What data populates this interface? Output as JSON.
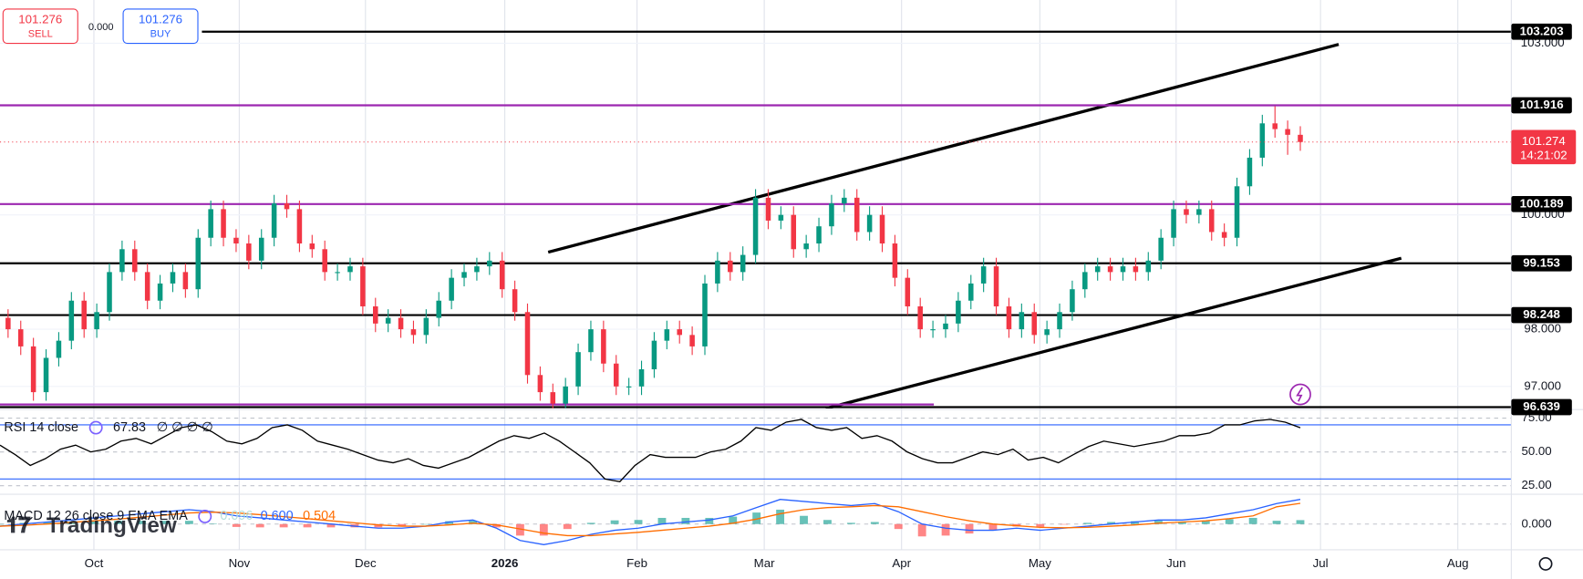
{
  "toolbar": {
    "sell_price": "101.276",
    "sell_label": "SELL",
    "buy_price": "101.276",
    "buy_label": "BUY",
    "spread": "0.000"
  },
  "watermark": "TradingView",
  "chart_data": [
    {
      "type": "candlestick",
      "ylim": [
        96.614,
        103.757
      ],
      "yticks": [
        {
          "value": 103,
          "label": "103.000"
        },
        {
          "value": 100,
          "label": "100.000"
        },
        {
          "value": 98,
          "label": "98.000"
        },
        {
          "value": 97,
          "label": "97.000"
        }
      ],
      "months": [
        "Oct",
        "Nov",
        "Dec",
        "2026",
        "Feb",
        "Mar",
        "Apr",
        "May",
        "Jun",
        "Jul",
        "Aug"
      ],
      "up_color": "#089981",
      "down_color": "#f23645",
      "price_lines": [
        {
          "value": 103.203,
          "color": "#000000"
        },
        {
          "value": 101.916,
          "color": "#9c27b0"
        },
        {
          "value": 100.189,
          "color": "#9c27b0"
        },
        {
          "value": 99.153,
          "color": "#000000"
        },
        {
          "value": 98.248,
          "color": "#000000"
        },
        {
          "value": 96.639,
          "color": "#000000"
        }
      ],
      "last_price": {
        "value": 101.274,
        "countdown": "14:21:02",
        "color": "#f23645"
      },
      "ohlc": [
        [
          98.2,
          98.35,
          97.85,
          98.0
        ],
        [
          98.0,
          98.15,
          97.55,
          97.7
        ],
        [
          97.7,
          97.85,
          96.75,
          96.9
        ],
        [
          96.9,
          97.65,
          96.75,
          97.5
        ],
        [
          97.5,
          97.95,
          97.35,
          97.8
        ],
        [
          97.8,
          98.65,
          97.65,
          98.5
        ],
        [
          98.5,
          98.65,
          97.85,
          98.0
        ],
        [
          98.0,
          98.45,
          97.85,
          98.3
        ],
        [
          98.3,
          99.15,
          98.15,
          99.0
        ],
        [
          99.0,
          99.55,
          98.85,
          99.4
        ],
        [
          99.4,
          99.55,
          98.85,
          99.0
        ],
        [
          99.0,
          99.15,
          98.35,
          98.5
        ],
        [
          98.5,
          98.95,
          98.35,
          98.8
        ],
        [
          98.8,
          99.15,
          98.65,
          99.0
        ],
        [
          99.0,
          99.15,
          98.55,
          98.7
        ],
        [
          98.7,
          99.75,
          98.55,
          99.6
        ],
        [
          99.6,
          100.25,
          99.45,
          100.1
        ],
        [
          100.1,
          100.25,
          99.45,
          99.6
        ],
        [
          99.6,
          99.75,
          99.35,
          99.5
        ],
        [
          99.5,
          99.65,
          99.05,
          99.2
        ],
        [
          99.2,
          99.75,
          99.05,
          99.6
        ],
        [
          99.6,
          100.35,
          99.45,
          100.2
        ],
        [
          100.2,
          100.35,
          99.95,
          100.1
        ],
        [
          100.1,
          100.25,
          99.35,
          99.5
        ],
        [
          99.5,
          99.65,
          99.25,
          99.4
        ],
        [
          99.4,
          99.55,
          98.85,
          99.0
        ],
        [
          99.0,
          99.15,
          98.85,
          99.0
        ],
        [
          99.0,
          99.25,
          98.85,
          99.1
        ],
        [
          99.1,
          99.25,
          98.25,
          98.4
        ],
        [
          98.4,
          98.55,
          97.95,
          98.1
        ],
        [
          98.1,
          98.35,
          97.95,
          98.2
        ],
        [
          98.2,
          98.35,
          97.85,
          98.0
        ],
        [
          98.0,
          98.15,
          97.75,
          97.9
        ],
        [
          97.9,
          98.35,
          97.75,
          98.2
        ],
        [
          98.2,
          98.65,
          98.05,
          98.5
        ],
        [
          98.5,
          99.05,
          98.35,
          98.9
        ],
        [
          98.9,
          99.15,
          98.75,
          99.0
        ],
        [
          99.0,
          99.25,
          98.85,
          99.1
        ],
        [
          99.1,
          99.35,
          98.95,
          99.2
        ],
        [
          99.2,
          99.35,
          98.55,
          98.7
        ],
        [
          98.7,
          98.85,
          98.15,
          98.3
        ],
        [
          98.3,
          98.45,
          97.05,
          97.2
        ],
        [
          97.2,
          97.35,
          96.75,
          96.9
        ],
        [
          96.9,
          97.05,
          96.62,
          96.7
        ],
        [
          96.7,
          97.15,
          96.62,
          97.0
        ],
        [
          97.0,
          97.75,
          96.85,
          97.6
        ],
        [
          97.6,
          98.15,
          97.45,
          98.0
        ],
        [
          98.0,
          98.15,
          97.25,
          97.4
        ],
        [
          97.4,
          97.55,
          96.85,
          97.0
        ],
        [
          97.0,
          97.15,
          96.85,
          97.0
        ],
        [
          97.0,
          97.45,
          96.85,
          97.3
        ],
        [
          97.3,
          97.95,
          97.15,
          97.8
        ],
        [
          97.8,
          98.15,
          97.65,
          98.0
        ],
        [
          98.0,
          98.15,
          97.75,
          97.9
        ],
        [
          97.9,
          98.05,
          97.55,
          97.7
        ],
        [
          97.7,
          98.95,
          97.55,
          98.8
        ],
        [
          98.8,
          99.35,
          98.65,
          99.2
        ],
        [
          99.2,
          99.35,
          98.85,
          99.0
        ],
        [
          99.0,
          99.45,
          98.85,
          99.3
        ],
        [
          99.3,
          100.45,
          99.15,
          100.3
        ],
        [
          100.3,
          100.45,
          99.75,
          99.9
        ],
        [
          99.9,
          100.15,
          99.75,
          100.0
        ],
        [
          100.0,
          100.15,
          99.25,
          99.4
        ],
        [
          99.4,
          99.65,
          99.25,
          99.5
        ],
        [
          99.5,
          99.95,
          99.35,
          99.8
        ],
        [
          99.8,
          100.35,
          99.65,
          100.2
        ],
        [
          100.2,
          100.45,
          100.05,
          100.3
        ],
        [
          100.3,
          100.45,
          99.55,
          99.7
        ],
        [
          99.7,
          100.15,
          99.55,
          100.0
        ],
        [
          100.0,
          100.15,
          99.35,
          99.5
        ],
        [
          99.5,
          99.65,
          98.75,
          98.9
        ],
        [
          98.9,
          99.05,
          98.25,
          98.4
        ],
        [
          98.4,
          98.55,
          97.85,
          98.0
        ],
        [
          98.0,
          98.15,
          97.85,
          98.0
        ],
        [
          98.0,
          98.25,
          97.85,
          98.1
        ],
        [
          98.1,
          98.65,
          97.95,
          98.5
        ],
        [
          98.5,
          98.95,
          98.35,
          98.8
        ],
        [
          98.8,
          99.25,
          98.65,
          99.1
        ],
        [
          99.1,
          99.25,
          98.25,
          98.4
        ],
        [
          98.4,
          98.55,
          97.85,
          98.0
        ],
        [
          98.0,
          98.45,
          97.85,
          98.3
        ],
        [
          98.3,
          98.45,
          97.75,
          97.9
        ],
        [
          97.9,
          98.15,
          97.75,
          98.0
        ],
        [
          98.0,
          98.45,
          97.85,
          98.3
        ],
        [
          98.3,
          98.85,
          98.15,
          98.7
        ],
        [
          98.7,
          99.15,
          98.55,
          99.0
        ],
        [
          99.0,
          99.25,
          98.85,
          99.1
        ],
        [
          99.1,
          99.25,
          98.85,
          99.0
        ],
        [
          99.0,
          99.25,
          98.85,
          99.1
        ],
        [
          99.1,
          99.25,
          98.85,
          99.0
        ],
        [
          99.0,
          99.35,
          98.85,
          99.2
        ],
        [
          99.2,
          99.75,
          99.05,
          99.6
        ],
        [
          99.6,
          100.25,
          99.45,
          100.1
        ],
        [
          100.1,
          100.25,
          99.85,
          100.0
        ],
        [
          100.0,
          100.25,
          99.85,
          100.1
        ],
        [
          100.1,
          100.25,
          99.55,
          99.7
        ],
        [
          99.7,
          99.85,
          99.45,
          99.6
        ],
        [
          99.6,
          100.65,
          99.45,
          100.5
        ],
        [
          100.5,
          101.15,
          100.35,
          101.0
        ],
        [
          101.0,
          101.75,
          100.85,
          101.6
        ],
        [
          101.6,
          101.9,
          101.35,
          101.5
        ],
        [
          101.5,
          101.65,
          101.05,
          101.4
        ],
        [
          101.4,
          101.55,
          101.12,
          101.274
        ]
      ]
    },
    {
      "type": "line",
      "title": "RSI 14 close",
      "value_label": "67.83",
      "placeholders": "∅ ∅ ∅ ∅",
      "color": "#000000",
      "band_color": "#2962ff",
      "ylim": [
        18.7,
        80.6
      ],
      "yticks": [
        {
          "value": 75,
          "label": "75.00"
        },
        {
          "value": 50,
          "label": "50.00"
        },
        {
          "value": 25,
          "label": "25.00"
        }
      ],
      "bands": [
        70,
        30
      ],
      "values": [
        55,
        48,
        40,
        45,
        52,
        55,
        50,
        52,
        58,
        60,
        56,
        62,
        68,
        70,
        65,
        58,
        56,
        60,
        68,
        70,
        66,
        58,
        55,
        52,
        48,
        44,
        42,
        45,
        40,
        38,
        42,
        46,
        52,
        58,
        62,
        60,
        64,
        58,
        50,
        42,
        30,
        28,
        40,
        48,
        46,
        46,
        46,
        50,
        52,
        58,
        68,
        66,
        72,
        74,
        68,
        66,
        68,
        60,
        62,
        58,
        50,
        45,
        42,
        42,
        46,
        50,
        48,
        52,
        44,
        46,
        42,
        48,
        54,
        58,
        56,
        54,
        56,
        58,
        62,
        62,
        64,
        70,
        70,
        73,
        74,
        72,
        67.83
      ]
    },
    {
      "type": "macd",
      "title": "MACD 12 26 close 9 EMA EMA",
      "ylim": [
        -0.6,
        0.7
      ],
      "yticks": [
        {
          "value": 0,
          "label": "0.000"
        }
      ],
      "legend_values": [
        {
          "value": 0.096,
          "label": "0.096",
          "color": "#b2dfdb"
        },
        {
          "value": 0.6,
          "label": "0.600",
          "color": "#2962ff"
        },
        {
          "value": 0.504,
          "label": "0.504",
          "color": "#ff6d00"
        }
      ],
      "histogram_up_color": "#26a69a",
      "histogram_down_color": "#ff5252",
      "macd": [
        -0.05,
        0.0,
        0.05,
        0.1,
        0.15,
        0.2,
        0.25,
        0.3,
        0.35,
        0.3,
        0.2,
        0.15,
        0.1,
        0.05,
        0.0,
        -0.05,
        -0.1,
        -0.1,
        -0.05,
        0.05,
        0.1,
        -0.1,
        -0.4,
        -0.5,
        -0.4,
        -0.25,
        -0.15,
        -0.1,
        0.0,
        0.05,
        0.1,
        0.2,
        0.4,
        0.6,
        0.55,
        0.5,
        0.45,
        0.5,
        0.3,
        0.0,
        -0.1,
        -0.15,
        -0.15,
        -0.1,
        -0.15,
        -0.1,
        -0.05,
        0.0,
        0.05,
        0.1,
        0.1,
        0.15,
        0.25,
        0.35,
        0.5,
        0.6
      ],
      "signal": [
        -0.05,
        -0.03,
        0.0,
        0.04,
        0.08,
        0.12,
        0.17,
        0.22,
        0.27,
        0.29,
        0.27,
        0.23,
        0.18,
        0.13,
        0.08,
        0.03,
        -0.02,
        -0.05,
        -0.05,
        -0.02,
        0.02,
        -0.02,
        -0.12,
        -0.22,
        -0.28,
        -0.28,
        -0.24,
        -0.2,
        -0.15,
        -0.1,
        -0.05,
        0.02,
        0.12,
        0.25,
        0.35,
        0.4,
        0.42,
        0.45,
        0.42,
        0.3,
        0.18,
        0.08,
        0.0,
        -0.04,
        -0.08,
        -0.09,
        -0.08,
        -0.05,
        -0.02,
        0.02,
        0.05,
        0.08,
        0.13,
        0.2,
        0.42,
        0.504
      ],
      "histogram": [
        0,
        0.03,
        0.05,
        0.06,
        0.07,
        0.08,
        0.08,
        0.08,
        0.08,
        0.01,
        -0.07,
        -0.08,
        -0.08,
        -0.08,
        -0.08,
        -0.08,
        -0.08,
        -0.05,
        0,
        0.07,
        0.08,
        -0.08,
        -0.28,
        -0.28,
        -0.12,
        0.03,
        0.09,
        0.1,
        0.15,
        0.15,
        0.15,
        0.18,
        0.28,
        0.35,
        0.2,
        0.1,
        0.03,
        0.05,
        -0.12,
        -0.3,
        -0.28,
        -0.23,
        -0.15,
        -0.06,
        -0.07,
        -0.01,
        0.03,
        0.05,
        0.07,
        0.08,
        0.05,
        0.07,
        0.12,
        0.15,
        0.08,
        0.096
      ]
    }
  ]
}
